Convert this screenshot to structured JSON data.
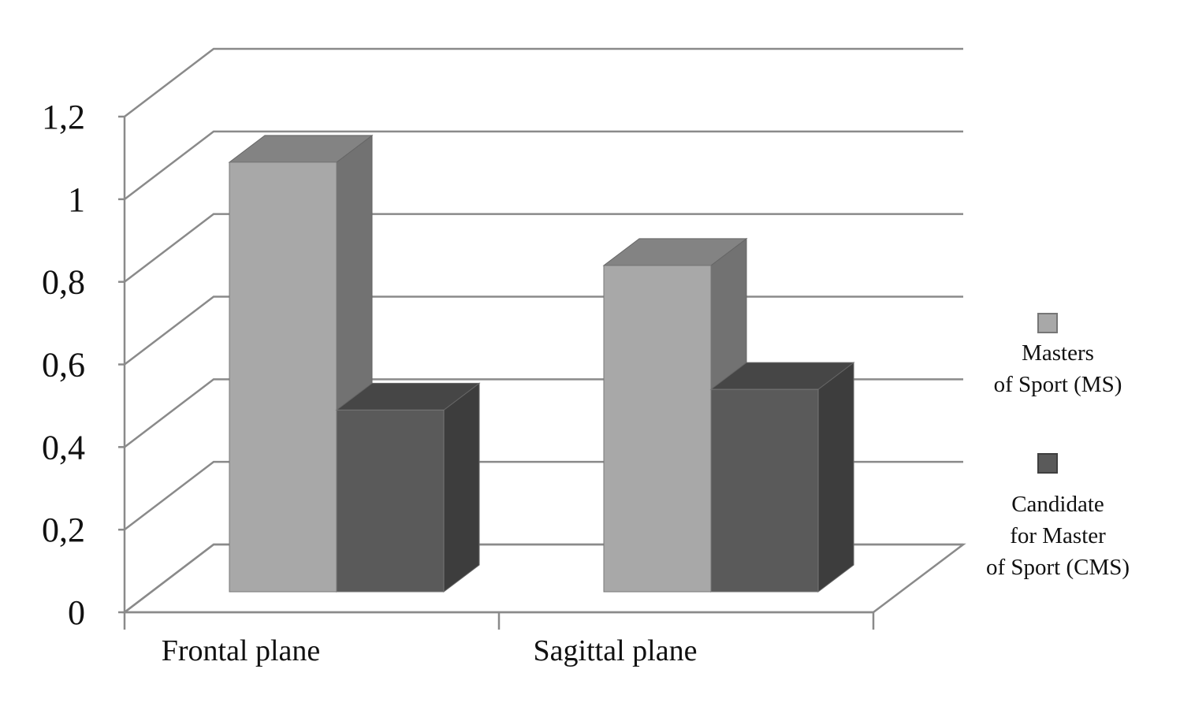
{
  "chart_data": {
    "type": "bar",
    "style": "3d-clustered-column",
    "categories": [
      "Frontal plane",
      "Sagittal plane"
    ],
    "series": [
      {
        "name": "Masters of Sport (MS)",
        "legend_lines": [
          "Masters",
          "of Sport (MS)"
        ],
        "values": [
          1.04,
          0.79
        ],
        "color": "#a8a8a8"
      },
      {
        "name": "Candidate for Master of Sport (CMS)",
        "legend_lines": [
          "Candidate",
          "for Master",
          "of Sport (CMS)"
        ],
        "values": [
          0.44,
          0.49
        ],
        "color": "#5a5a5a"
      }
    ],
    "y_ticks": [
      "0",
      "0,2",
      "0,4",
      "0,6",
      "0,8",
      "1",
      "1,2"
    ],
    "ylim": [
      0,
      1.2
    ],
    "grid": true,
    "legend_position": "right",
    "title": "",
    "xlabel": "",
    "ylabel": ""
  }
}
